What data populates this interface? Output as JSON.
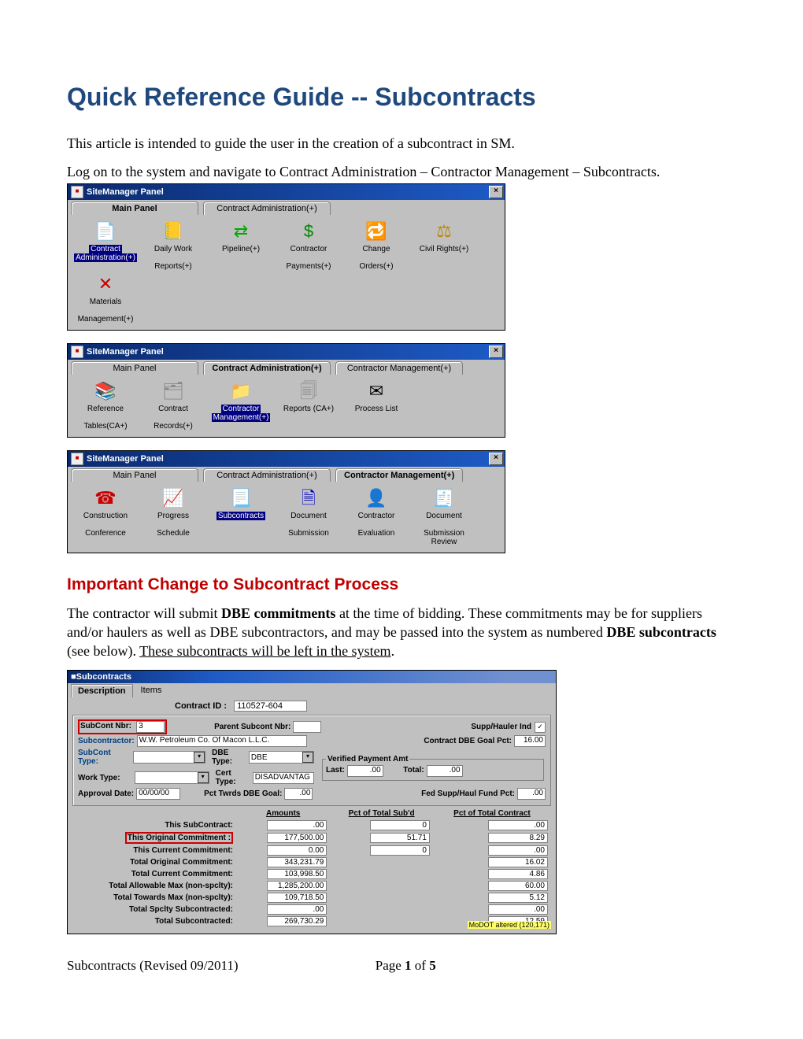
{
  "doc": {
    "title": "Quick Reference Guide -- Subcontracts",
    "intro": "This article is intended to guide the user in the creation of a subcontract in SM.",
    "nav_line": "Log on to the system and navigate to Contract Administration – Contractor Management – Subcontracts.",
    "subhead": "Important Change to Subcontract Process",
    "para2_a": "The contractor will submit ",
    "para2_b": "DBE commitments",
    "para2_c": " at the time of bidding.  These commitments may be for suppliers and/or haulers as well as DBE subcontractors, and may be passed into the system as numbered ",
    "para2_d": "DBE subcontracts",
    "para2_e": " (see below).  ",
    "para2_f": "These subcontracts will be left in the system",
    "footer_left": "Subcontracts (Revised 09/2011)",
    "footer_page": "Page ",
    "footer_cur": "1",
    "footer_of": " of ",
    "footer_tot": "5"
  },
  "panel_title": "SiteManager Panel",
  "close_x": "×",
  "p1": {
    "tabs": [
      "Main Panel",
      "Contract Administration(+)"
    ],
    "bold_tab": 0,
    "icons": [
      {
        "g": "📄",
        "l1": "Contract",
        "l2": "Administration(+)",
        "sel": true,
        "color": "#c90"
      },
      {
        "g": "📒",
        "l1": "Daily Work",
        "l2": "Reports(+)",
        "color": "#b80"
      },
      {
        "g": "⇄",
        "l1": "Pipeline(+)",
        "l2": "",
        "color": "#0a0"
      },
      {
        "g": "$",
        "l1": "Contractor",
        "l2": "Payments(+)",
        "color": "#080"
      },
      {
        "g": "🔁",
        "l1": "Change",
        "l2": "Orders(+)",
        "color": "#c00"
      },
      {
        "g": "⚖︎",
        "l1": "Civil Rights(+)",
        "l2": "",
        "color": "#b80"
      },
      {
        "g": "✕",
        "l1": "Materials",
        "l2": "Management(+)",
        "color": "#c00"
      }
    ]
  },
  "p2": {
    "tabs": [
      "Main Panel",
      "Contract Administration(+)",
      "Contractor Management(+)"
    ],
    "bold_tab": 1,
    "icons": [
      {
        "g": "📚",
        "l1": "Reference",
        "l2": "Tables(CA+)",
        "color": "#b00"
      },
      {
        "g": "🗂",
        "l1": "Contract",
        "l2": "Records(+)",
        "color": "#888"
      },
      {
        "g": "📁",
        "l1": "Contractor",
        "l2": "Management(+)",
        "sel": true,
        "color": "#0a0"
      },
      {
        "g": "🗐",
        "l1": "Reports (CA+)",
        "l2": "",
        "color": "#888"
      },
      {
        "g": "✉",
        "l1": "Process List",
        "l2": "",
        "color": "#000"
      }
    ]
  },
  "p3": {
    "tabs": [
      "Main Panel",
      "Contract Administration(+)",
      "Contractor Management(+)"
    ],
    "bold_tab": 2,
    "icons": [
      {
        "g": "☎",
        "l1": "Construction",
        "l2": "Conference",
        "color": "#c00"
      },
      {
        "g": "📈",
        "l1": "Progress",
        "l2": "Schedule",
        "color": "#06c"
      },
      {
        "g": "📃",
        "l1": "Subcontracts",
        "l2": "",
        "sel": true,
        "color": "#888"
      },
      {
        "g": "🗎",
        "l1": "Document",
        "l2": "Submission",
        "color": "#00c"
      },
      {
        "g": "👤",
        "l1": "Contractor",
        "l2": "Evaluation",
        "color": "#a60"
      },
      {
        "g": "🧾",
        "l1": "Document",
        "l2": "Submission Review",
        "color": "#00c"
      }
    ]
  },
  "sc": {
    "title": "Subcontracts",
    "tab1": "Description",
    "tab2": "Items",
    "cid_label": "Contract ID  :",
    "cid_value": "110527-604",
    "subcont_nbr_label": "SubCont Nbr:",
    "subcont_nbr_value": "3",
    "parent_label": "Parent Subcont Nbr:",
    "parent_value": "",
    "supp_label": "Supp/Hauler Ind",
    "supp_checked": "✓",
    "subcontractor_label": "Subcontractor:",
    "subcontractor_value": "W.W. Petroleum Co. Of Macon L.L.C.",
    "goal_label": "Contract DBE Goal Pct:",
    "goal_value": "16.00",
    "subcont_type_label": "SubCont Type:",
    "dbe_type_label": "DBE Type:",
    "dbe_type_value": "DBE",
    "work_type_label": "Work Type:",
    "cert_type_label": "Cert Type:",
    "cert_type_value": "DISADVANTAG",
    "approval_label": "Approval Date:",
    "approval_value": "00/00/00",
    "pct_twrds_label": "Pct Twrds DBE Goal:",
    "pct_twrds_value": ".00",
    "vpa_legend": "Verified Payment Amt",
    "last_label": "Last:",
    "last_value": ".00",
    "total_label": "Total:",
    "total_value": ".00",
    "fed_label": "Fed Supp/Haul Fund Pct:",
    "fed_value": ".00",
    "col_amounts": "Amounts",
    "col_sub": "Pct of Total Sub'd",
    "col_ctr": "Pct of Total Contract",
    "alt_note": "MoDOT altered (120,171)",
    "rows": [
      {
        "l": "This SubContract:",
        "a": ".00",
        "s": "0",
        "c": ".00"
      },
      {
        "l": "This Original Commitment :",
        "a": "177,500.00",
        "s": "51.71",
        "c": "8.29",
        "highlight": true
      },
      {
        "l": "This Current Commitment:",
        "a": "0.00",
        "s": "0",
        "c": ".00"
      },
      {
        "l": "Total Original Commitment:",
        "a": "343,231.79",
        "s": "",
        "c": "16.02"
      },
      {
        "l": "Total Current Commitment:",
        "a": "103,998.50",
        "s": "",
        "c": "4.86"
      },
      {
        "l": "Total Allowable Max (non-spclty):",
        "a": "1,285,200.00",
        "s": "",
        "c": "60.00"
      },
      {
        "l": "Total Towards Max (non-spclty):",
        "a": "109,718.50",
        "s": "",
        "c": "5.12"
      },
      {
        "l": "Total Spclty Subcontracted:",
        "a": ".00",
        "s": "",
        "c": ".00"
      },
      {
        "l": "Total Subcontracted:",
        "a": "269,730.29",
        "s": "",
        "c": "12.59"
      }
    ]
  }
}
